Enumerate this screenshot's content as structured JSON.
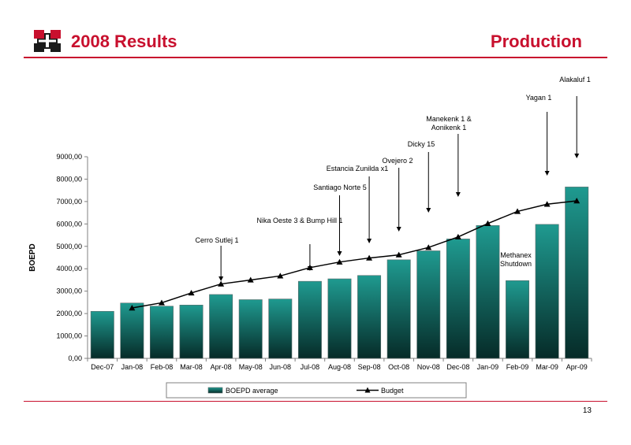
{
  "header": {
    "title": "2008 Results",
    "section": "Production"
  },
  "footer": {
    "page_number": "13"
  },
  "colors": {
    "accent": "#c8102e",
    "bar_top": "#1f9a90",
    "bar_bottom": "#062b28",
    "line": "#000000"
  },
  "chart_data": {
    "type": "bar",
    "title": "",
    "xlabel": "",
    "ylabel": "BOEPD",
    "ylim": [
      0,
      9000
    ],
    "ytick_step": 1000,
    "ytick_labels": [
      "0,00",
      "1000,00",
      "2000,00",
      "3000,00",
      "4000,00",
      "5000,00",
      "6000,00",
      "7000,00",
      "8000,00",
      "9000,00"
    ],
    "grid": false,
    "legend_position": "bottom",
    "categories": [
      "Dec-07",
      "Jan-08",
      "Feb-08",
      "Mar-08",
      "Apr-08",
      "May-08",
      "Jun-08",
      "Jul-08",
      "Aug-08",
      "Sep-08",
      "Oct-08",
      "Nov-08",
      "Dec-08",
      "Jan-09",
      "Feb-09",
      "Mar-09",
      "Apr-09"
    ],
    "series": [
      {
        "name": "BOEPD average",
        "type": "bar",
        "values": [
          2100,
          2470,
          2330,
          2380,
          2850,
          2620,
          2650,
          3440,
          3550,
          3700,
          4400,
          4800,
          5330,
          5930,
          3470,
          5980,
          7650
        ]
      },
      {
        "name": "Budget",
        "type": "line",
        "values": [
          null,
          2250,
          2480,
          2920,
          3320,
          3500,
          3680,
          4050,
          4300,
          4480,
          4620,
          4950,
          5420,
          6020,
          6560,
          6880,
          7030
        ]
      }
    ],
    "annotations": [
      {
        "lines": [
          "Cerro Sutlej 1"
        ],
        "category": "Apr-08"
      },
      {
        "lines": [
          "Nika Oeste 3 & Bump Hill 1"
        ],
        "category": "Jul-08"
      },
      {
        "lines": [
          "Santiago Norte 5"
        ],
        "category": "Aug-08"
      },
      {
        "lines": [
          "Estancia Zunilda x1"
        ],
        "category": "Sep-08"
      },
      {
        "lines": [
          "Ovejero 2"
        ],
        "category": "Oct-08"
      },
      {
        "lines": [
          "Dicky 15"
        ],
        "category": "Nov-08"
      },
      {
        "lines": [
          "Manekenk 1  &",
          "Aonikenk 1"
        ],
        "category": "Dec-08"
      },
      {
        "lines": [
          "Yagan 1"
        ],
        "category": "Mar-09"
      },
      {
        "lines": [
          "Alakaluf 1"
        ],
        "category": "Apr-09"
      },
      {
        "lines": [
          "Methanex",
          "Shutdown"
        ],
        "category": "Feb-09"
      }
    ]
  }
}
